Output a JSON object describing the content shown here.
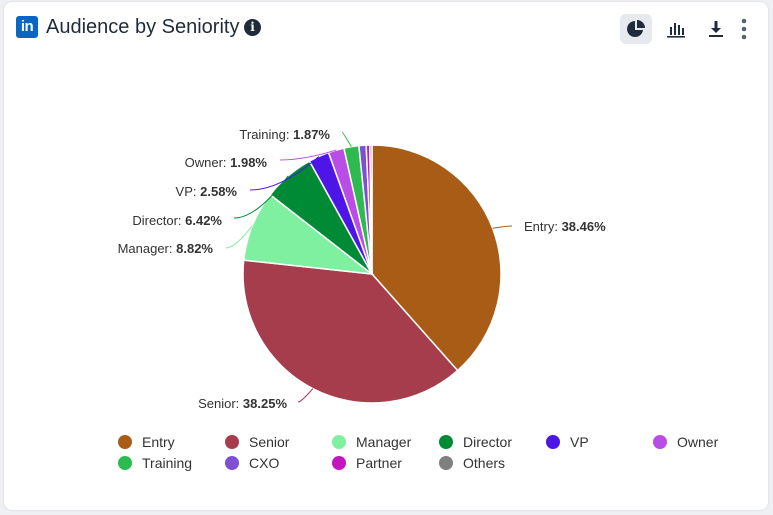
{
  "header": {
    "title": "Audience by Seniority",
    "logo_text": "in",
    "info_glyph": "i"
  },
  "toolbar": {
    "pie_icon": "pie-chart-icon",
    "bar_icon": "bar-chart-icon",
    "download_icon": "download-icon",
    "more_icon": "more-vertical-icon"
  },
  "chart_data": {
    "type": "pie",
    "title": "Audience by Seniority",
    "slices": [
      {
        "name": "Entry",
        "value": 38.46,
        "label": "Entry: ",
        "pct": "38.46%",
        "color": "#a95c16"
      },
      {
        "name": "Senior",
        "value": 38.25,
        "label": "Senior: ",
        "pct": "38.25%",
        "color": "#a63d4c"
      },
      {
        "name": "Manager",
        "value": 8.82,
        "label": "Manager: ",
        "pct": "8.82%",
        "color": "#7ff0a0"
      },
      {
        "name": "Director",
        "value": 6.42,
        "label": "Director: ",
        "pct": "6.42%",
        "color": "#008a35"
      },
      {
        "name": "VP",
        "value": 2.58,
        "label": "VP: ",
        "pct": "2.58%",
        "color": "#4d16e6"
      },
      {
        "name": "Owner",
        "value": 1.98,
        "label": "Owner: ",
        "pct": "1.98%",
        "color": "#b94ee6"
      },
      {
        "name": "Training",
        "value": 1.87,
        "label": "Training: ",
        "pct": "1.87%",
        "color": "#2dbb4f"
      },
      {
        "name": "CXO",
        "value": 0.9,
        "label": "",
        "pct": "",
        "color": "#7e4fd3"
      },
      {
        "name": "Partner",
        "value": 0.45,
        "label": "",
        "pct": "",
        "color": "#c316c3"
      },
      {
        "name": "Others",
        "value": 0.27,
        "label": "",
        "pct": "",
        "color": "#7f7f7f"
      }
    ],
    "legend": {
      "placement": "bottom",
      "items": [
        {
          "name": "Entry",
          "color": "#a95c16"
        },
        {
          "name": "Senior",
          "color": "#a63d4c"
        },
        {
          "name": "Manager",
          "color": "#7ff0a0"
        },
        {
          "name": "Director",
          "color": "#008a35"
        },
        {
          "name": "VP",
          "color": "#4d16e6"
        },
        {
          "name": "Owner",
          "color": "#b94ee6"
        },
        {
          "name": "Training",
          "color": "#2dbb4f"
        },
        {
          "name": "CXO",
          "color": "#7e4fd3"
        },
        {
          "name": "Partner",
          "color": "#c316c3"
        },
        {
          "name": "Others",
          "color": "#7f7f7f"
        }
      ]
    }
  }
}
